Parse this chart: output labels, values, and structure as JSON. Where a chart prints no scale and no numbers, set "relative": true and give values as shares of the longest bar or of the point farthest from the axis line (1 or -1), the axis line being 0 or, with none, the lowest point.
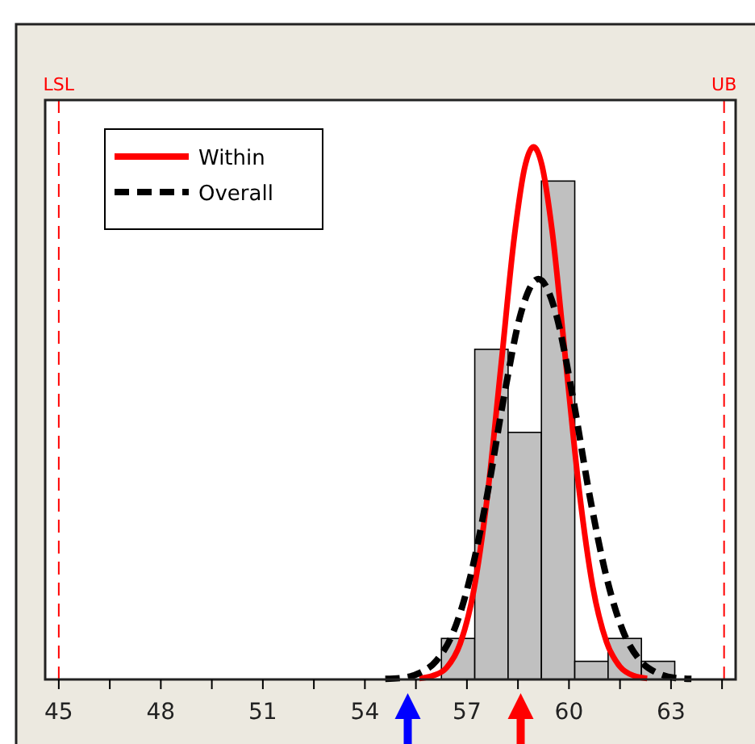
{
  "chart_data": {
    "type": "histogram",
    "relative": true,
    "bins": [
      56.25,
      57.23,
      58.21,
      59.19,
      60.17,
      61.15,
      62.13,
      63.11
    ],
    "values": [
      0.077,
      0.62,
      0.464,
      0.936,
      0.034,
      0.077,
      0.034
    ],
    "color": "#c0c0c0",
    "series": [
      {
        "name": "Within",
        "type": "line",
        "color": "#ff0000",
        "line_style": "solid",
        "x": [
          55.6,
          56.0,
          56.4,
          56.8,
          57.2,
          57.6,
          58.0,
          58.4,
          58.7,
          58.96,
          59.2,
          59.5,
          59.9,
          60.3,
          60.7,
          61.1,
          61.5,
          61.9,
          62.3
        ],
        "values": [
          0.002,
          0.007,
          0.022,
          0.067,
          0.167,
          0.344,
          0.588,
          0.835,
          0.962,
          1,
          0.967,
          0.845,
          0.6,
          0.355,
          0.174,
          0.071,
          0.024,
          0.007,
          0.002
        ]
      },
      {
        "type": "scatter",
        "marker": "triangle",
        "x": [
          55.26,
          58.58
        ],
        "values": [
          -0.05,
          -0.05
        ],
        "colors": [
          "#0000ff",
          "#ff0000"
        ]
      },
      {
        "name": "Overall",
        "type": "line",
        "color": "#000000",
        "line_style": "dashed",
        "x": [
          54.6,
          55.1,
          55.6,
          56.1,
          56.6,
          57.1,
          57.6,
          58.1,
          58.6,
          59.1,
          59.6,
          60.1,
          60.6,
          61.1,
          61.6,
          62.1,
          62.6,
          63.1,
          63.6
        ],
        "values": [
          0.001,
          0.003,
          0.012,
          0.035,
          0.089,
          0.193,
          0.348,
          0.535,
          0.691,
          0.752,
          0.691,
          0.535,
          0.348,
          0.193,
          0.089,
          0.035,
          0.012,
          0.003,
          0.001
        ]
      }
    ],
    "xlim": [
      44.6,
      64.9
    ],
    "xticks": [
      45,
      {
        "value": 46.5,
        "label": null
      },
      48,
      {
        "value": 49.5,
        "label": null
      },
      51,
      {
        "value": 52.5,
        "label": null
      },
      54,
      {
        "value": 55.5,
        "label": null
      },
      57,
      {
        "value": 58.5,
        "label": null
      },
      60,
      {
        "value": 61.5,
        "label": null
      },
      63,
      {
        "value": 64.5,
        "label": null
      }
    ],
    "ref_lines": [
      {
        "axis": "x",
        "value": 45,
        "label": "LSL",
        "color": "#ff0000",
        "line_style": "dashed"
      },
      {
        "axis": "x",
        "value": 64.56,
        "label": "UB",
        "color": "#ff0000",
        "line_style": "dashed"
      }
    ],
    "legend": "top left",
    "grid": false
  }
}
